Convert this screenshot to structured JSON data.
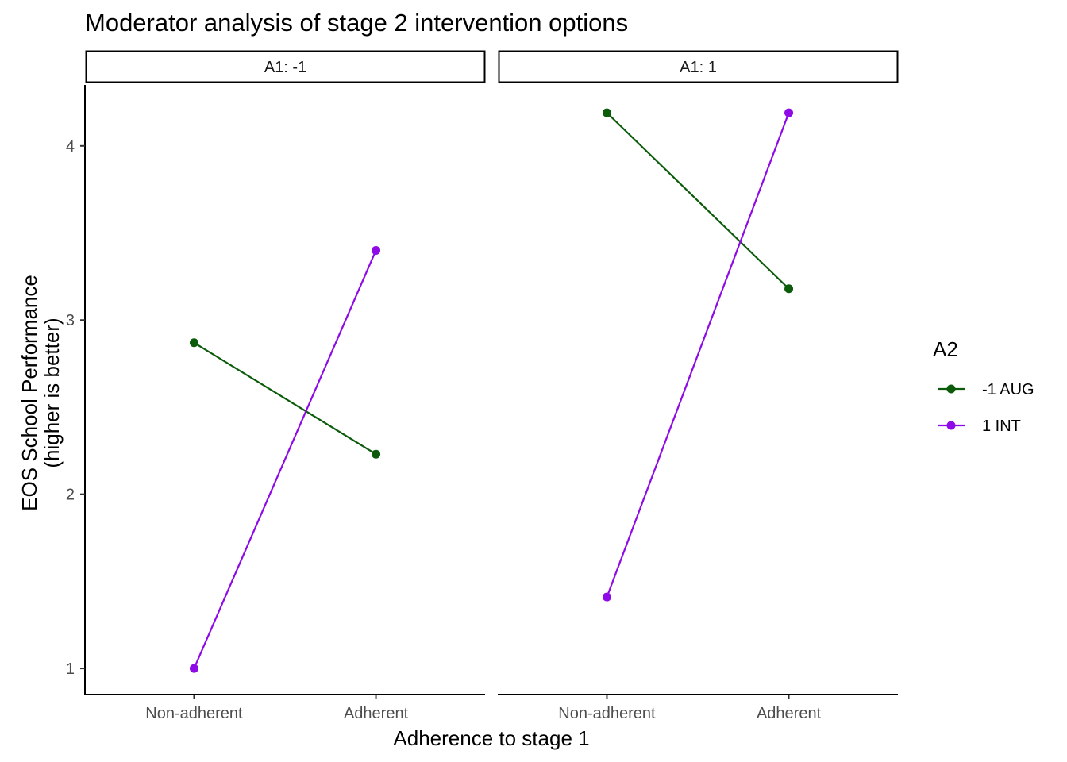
{
  "chart_data": {
    "type": "line",
    "title": "Moderator analysis of stage 2 intervention options",
    "xlabel": "Adherence to stage 1",
    "ylabel_lines": [
      "EOS School Performance",
      "(higher is better)"
    ],
    "categories": [
      "Non-adherent",
      "Adherent"
    ],
    "y_ticks": [
      1,
      2,
      3,
      4
    ],
    "ylim": [
      0.85,
      4.35
    ],
    "grid": false,
    "legend": {
      "title": "A2",
      "placement": "right",
      "entries": [
        "-1 AUG",
        "1 INT"
      ]
    },
    "series_colors": {
      "-1 AUG": "#0b5b0b",
      "1 INT": "#8e0ae6"
    },
    "facets": [
      {
        "label": "A1: -1",
        "series": [
          {
            "name": "-1 AUG",
            "values": [
              2.87,
              2.23
            ]
          },
          {
            "name": "1 INT",
            "values": [
              1.0,
              3.4
            ]
          }
        ]
      },
      {
        "label": "A1: 1",
        "series": [
          {
            "name": "-1 AUG",
            "values": [
              4.19,
              3.18
            ]
          },
          {
            "name": "1 INT",
            "values": [
              1.41,
              4.19
            ]
          }
        ]
      }
    ]
  }
}
